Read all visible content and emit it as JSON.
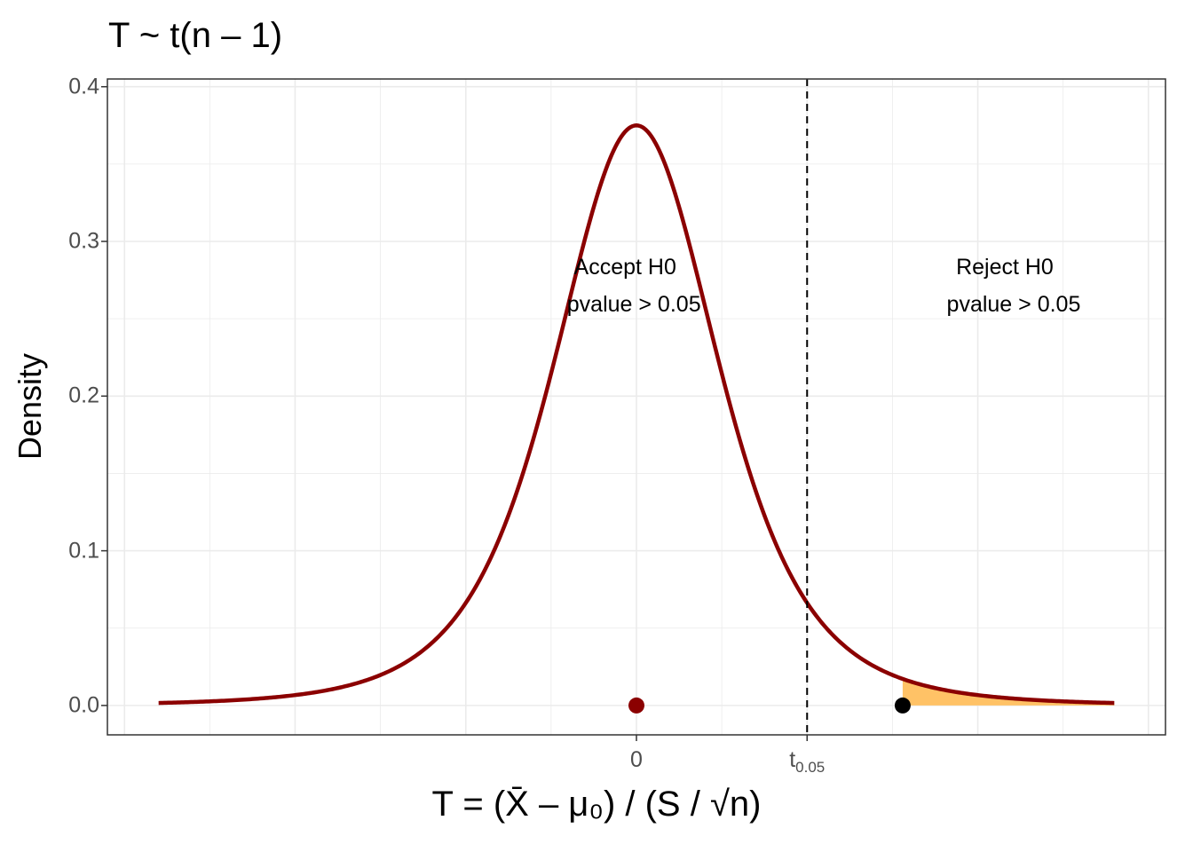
{
  "chart_data": {
    "type": "line",
    "title": "T ~ t(n – 1)",
    "xlabel": "T = (X̄ – μ₀) / (S / √n)",
    "ylabel": "Density",
    "y_ticks": [
      "0.0",
      "0.1",
      "0.2",
      "0.3",
      "0.4"
    ],
    "ylim": [
      -0.019,
      0.405
    ],
    "xlim": [
      -6.2,
      6.2
    ],
    "grid": true,
    "x_tick_labels": [
      {
        "value": 0,
        "label": "0"
      },
      {
        "value": 2,
        "label_main": "t",
        "label_sub": "0.05"
      }
    ],
    "series": [
      {
        "distribution": "Student t density",
        "df": 4,
        "x_range": [
          -5.6,
          5.6
        ],
        "color": "#8b0000"
      }
    ],
    "critical_value": {
      "x": 2,
      "style": "dashed",
      "color": "#000000"
    },
    "shaded_tail": {
      "x_from": 3.12,
      "x_to": 5.6,
      "color": "#ffc266"
    },
    "points": [
      {
        "x": 0,
        "y": 0,
        "color": "#8b0000"
      },
      {
        "x": 3.12,
        "y": 0,
        "color": "#000000"
      }
    ],
    "annotations": [
      {
        "region": "accept",
        "x": -0.05,
        "y": 0.24,
        "lines": [
          "Accept H0",
          "pvalue > 0.05"
        ]
      },
      {
        "region": "reject",
        "x": 4.4,
        "y": 0.24,
        "lines": [
          "Reject H0",
          "pvalue > 0.05"
        ]
      }
    ]
  }
}
